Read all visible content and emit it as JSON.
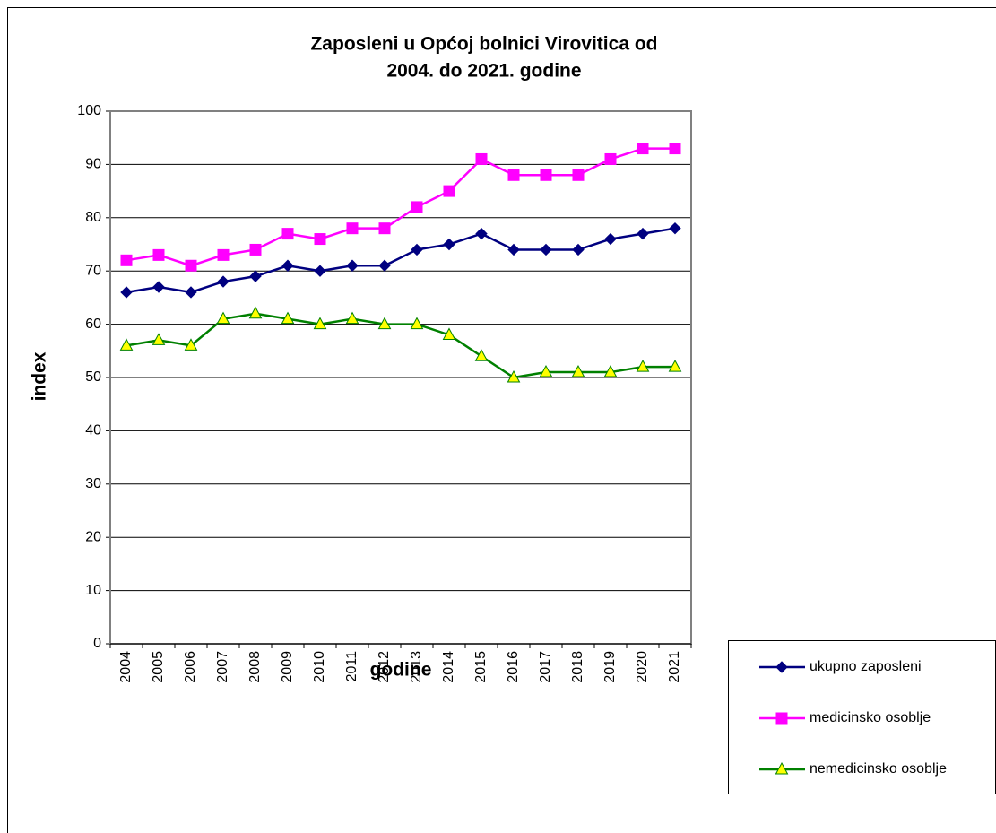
{
  "chart_data": {
    "type": "line",
    "title_lines": [
      "Zaposleni u Općoj bolnici Virovitica od",
      "2004. do 2021. godine"
    ],
    "x_label": "godine",
    "y_label": "index",
    "categories": [
      "2004",
      "2005",
      "2006",
      "2007",
      "2008",
      "2009",
      "2010",
      "2011",
      "2012",
      "2013",
      "2014",
      "2015",
      "2016",
      "2017",
      "2018",
      "2019",
      "2020",
      "2021"
    ],
    "series": [
      {
        "name": "ukupno zaposleni",
        "color": "#000080",
        "marker": "diamond",
        "marker_fill": "#000080",
        "values": [
          66,
          67,
          66,
          68,
          69,
          71,
          70,
          71,
          71,
          74,
          75,
          77,
          74,
          74,
          74,
          76,
          77,
          78
        ]
      },
      {
        "name": "medicinsko osoblje",
        "color": "#ff00ff",
        "marker": "square",
        "marker_fill": "#ff00ff",
        "values": [
          72,
          73,
          71,
          73,
          74,
          77,
          76,
          78,
          78,
          82,
          85,
          91,
          88,
          88,
          88,
          91,
          93,
          93
        ]
      },
      {
        "name": "nemedicinsko osoblje",
        "color": "#008000",
        "marker": "triangle",
        "marker_fill": "#ffff00",
        "values": [
          56,
          57,
          56,
          61,
          62,
          61,
          60,
          61,
          60,
          60,
          58,
          54,
          50,
          51,
          51,
          51,
          52,
          52
        ]
      }
    ],
    "ylim": [
      0,
      100
    ],
    "yticks": [
      0,
      10,
      20,
      30,
      40,
      50,
      60,
      70,
      80,
      90,
      100
    ],
    "grid": true,
    "legend": "bottom-right"
  }
}
